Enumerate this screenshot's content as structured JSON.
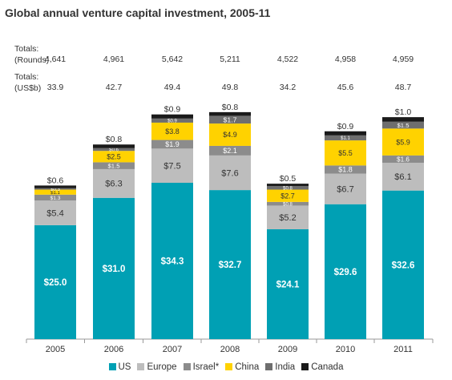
{
  "title": "Global annual venture capital investment, 2005-11",
  "totals": {
    "rounds_label_1": "Totals:",
    "rounds_label_2": "(Rounds)",
    "usd_label_1": "Totals:",
    "usd_label_2": "(US$b)",
    "rounds": [
      "4,641",
      "4,961",
      "5,642",
      "5,211",
      "4,522",
      "4,958",
      "4,959"
    ],
    "usd": [
      "33.9",
      "42.7",
      "49.4",
      "49.8",
      "34.2",
      "45.6",
      "48.7"
    ]
  },
  "chart_data": {
    "type": "bar",
    "stacked": true,
    "categories": [
      "2005",
      "2006",
      "2007",
      "2008",
      "2009",
      "2010",
      "2011"
    ],
    "series": [
      {
        "name": "US",
        "color": "#00a0b4",
        "values": [
          25.0,
          31.0,
          34.3,
          32.7,
          24.1,
          29.6,
          32.6
        ],
        "labels": [
          "$25.0",
          "$31.0",
          "$34.3",
          "$32.7",
          "$24.1",
          "$29.6",
          "$32.6"
        ]
      },
      {
        "name": "Europe",
        "color": "#bdbdbd",
        "values": [
          5.4,
          6.3,
          7.5,
          7.6,
          5.2,
          6.7,
          6.1
        ],
        "labels": [
          "$5.4",
          "$6.3",
          "$7.5",
          "$7.6",
          "$5.2",
          "$6.7",
          "$6.1"
        ]
      },
      {
        "name": "Israel*",
        "color": "#8c8c8c",
        "values": [
          1.3,
          1.5,
          1.9,
          2.1,
          0.8,
          1.8,
          1.6
        ],
        "labels": [
          "$1.3",
          "$1.5",
          "$1.9",
          "$2.1",
          "$0.8",
          "$1.8",
          "$1.6"
        ]
      },
      {
        "name": "China",
        "color": "#ffd200",
        "values": [
          1.1,
          2.5,
          3.8,
          4.9,
          2.7,
          5.5,
          5.9
        ],
        "labels": [
          "$1.1",
          "$2.5",
          "$3.8",
          "$4.9",
          "$2.7",
          "$5.5",
          "$5.9"
        ]
      },
      {
        "name": "India",
        "color": "#6e6e6e",
        "values": [
          0.3,
          0.6,
          0.9,
          1.7,
          0.8,
          1.1,
          1.5
        ],
        "labels": [
          "$0.3",
          "$0.6",
          "$0.9",
          "$1.7",
          "$0.8",
          "$1.1",
          "$1.5"
        ]
      },
      {
        "name": "Canada",
        "color": "#1a1a1a",
        "values": [
          0.6,
          0.8,
          0.9,
          0.8,
          0.5,
          0.9,
          1.0
        ],
        "labels": [
          "$0.6",
          "$0.8",
          "$0.9",
          "$0.8",
          "$0.5",
          "$0.9",
          "$1.0"
        ]
      }
    ],
    "xlabel": "",
    "ylabel": "",
    "ylim": [
      0,
      50
    ],
    "legend_position": "bottom"
  }
}
